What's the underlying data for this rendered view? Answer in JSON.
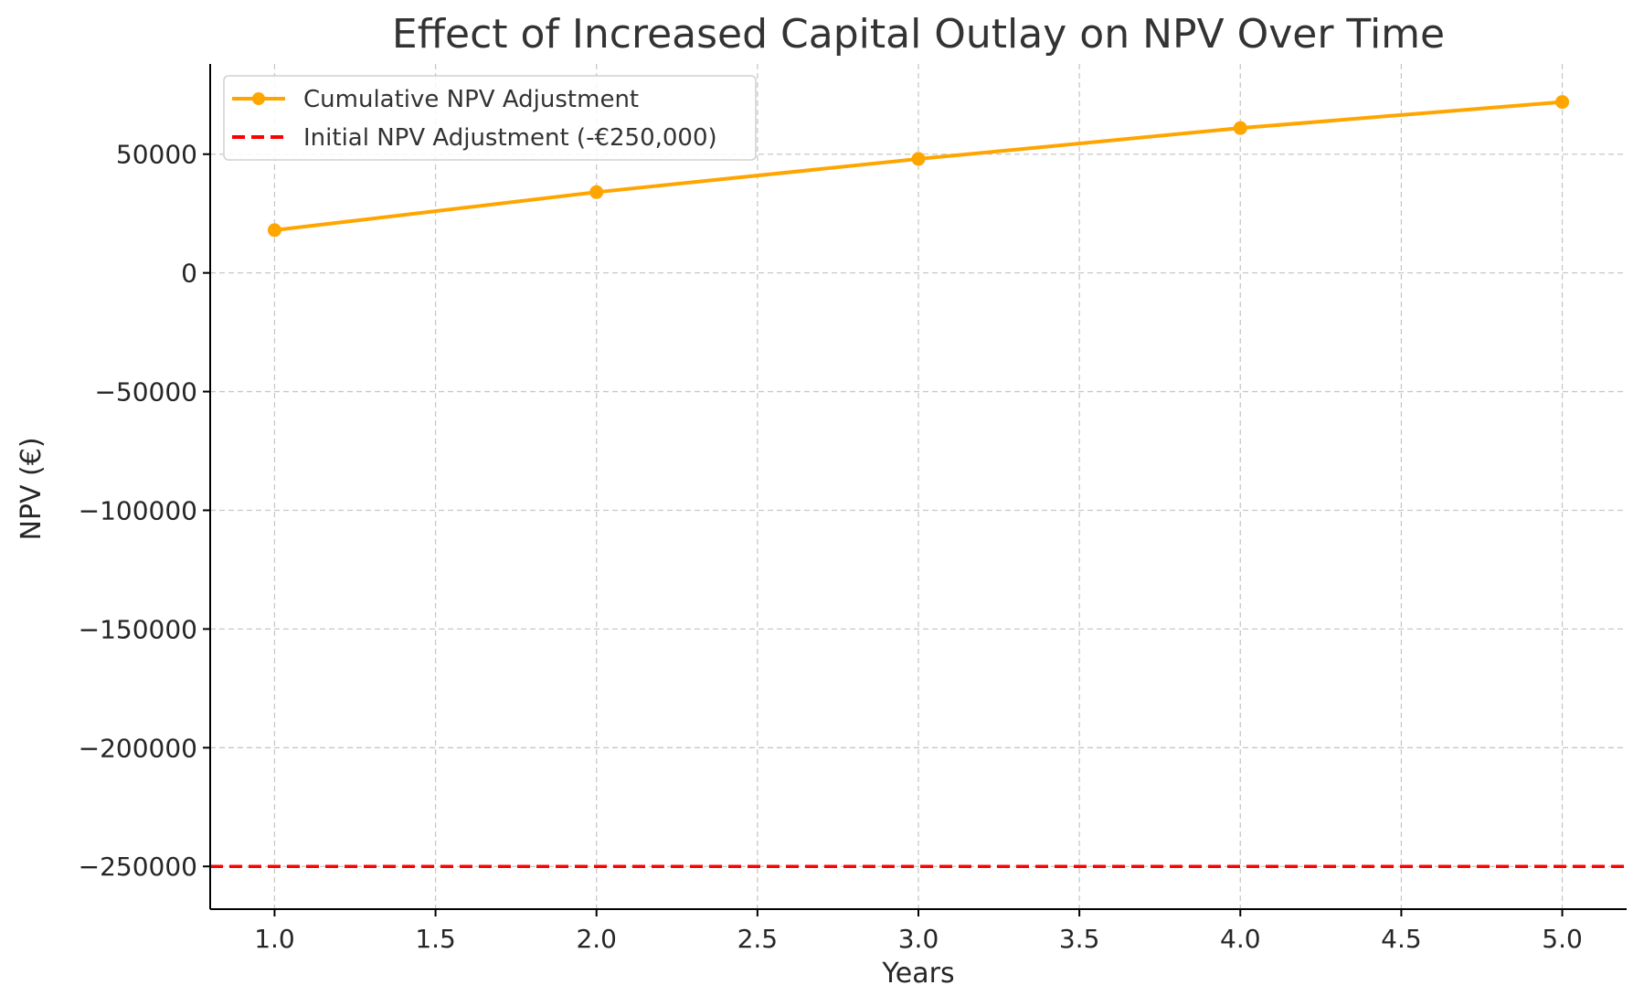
{
  "colors": {
    "series_line": "#FFA500",
    "reference_line": "#FF0000",
    "grid": "#C8C8C8",
    "text": "#262626"
  },
  "chart_data": {
    "type": "line",
    "title": "Effect of Increased Capital Outlay on NPV Over Time",
    "xlabel": "Years",
    "ylabel": "NPV (€)",
    "xlim": [
      0.8,
      5.2
    ],
    "ylim": [
      -268000,
      88000
    ],
    "x_ticks": [
      1.0,
      1.5,
      2.0,
      2.5,
      3.0,
      3.5,
      4.0,
      4.5,
      5.0
    ],
    "x_tick_labels": [
      "1.0",
      "1.5",
      "2.0",
      "2.5",
      "3.0",
      "3.5",
      "4.0",
      "4.5",
      "5.0"
    ],
    "y_ticks": [
      50000,
      0,
      -50000,
      -100000,
      -150000,
      -200000,
      -250000
    ],
    "y_tick_labels": [
      "50000",
      "0",
      "−50000",
      "−100000",
      "−150000",
      "−200000",
      "−250000"
    ],
    "grid": true,
    "legend_position": "top-left",
    "series": [
      {
        "name": "Cumulative NPV Adjustment",
        "style": "solid-with-markers",
        "color": "#FFA500",
        "x": [
          1.0,
          2.0,
          3.0,
          4.0,
          5.0
        ],
        "y": [
          18000,
          34000,
          48000,
          61000,
          72000
        ]
      }
    ],
    "reference_lines": [
      {
        "name": "Initial NPV Adjustment (-€250,000)",
        "orientation": "horizontal",
        "style": "dashed",
        "color": "#FF0000",
        "y": -250000
      }
    ]
  }
}
